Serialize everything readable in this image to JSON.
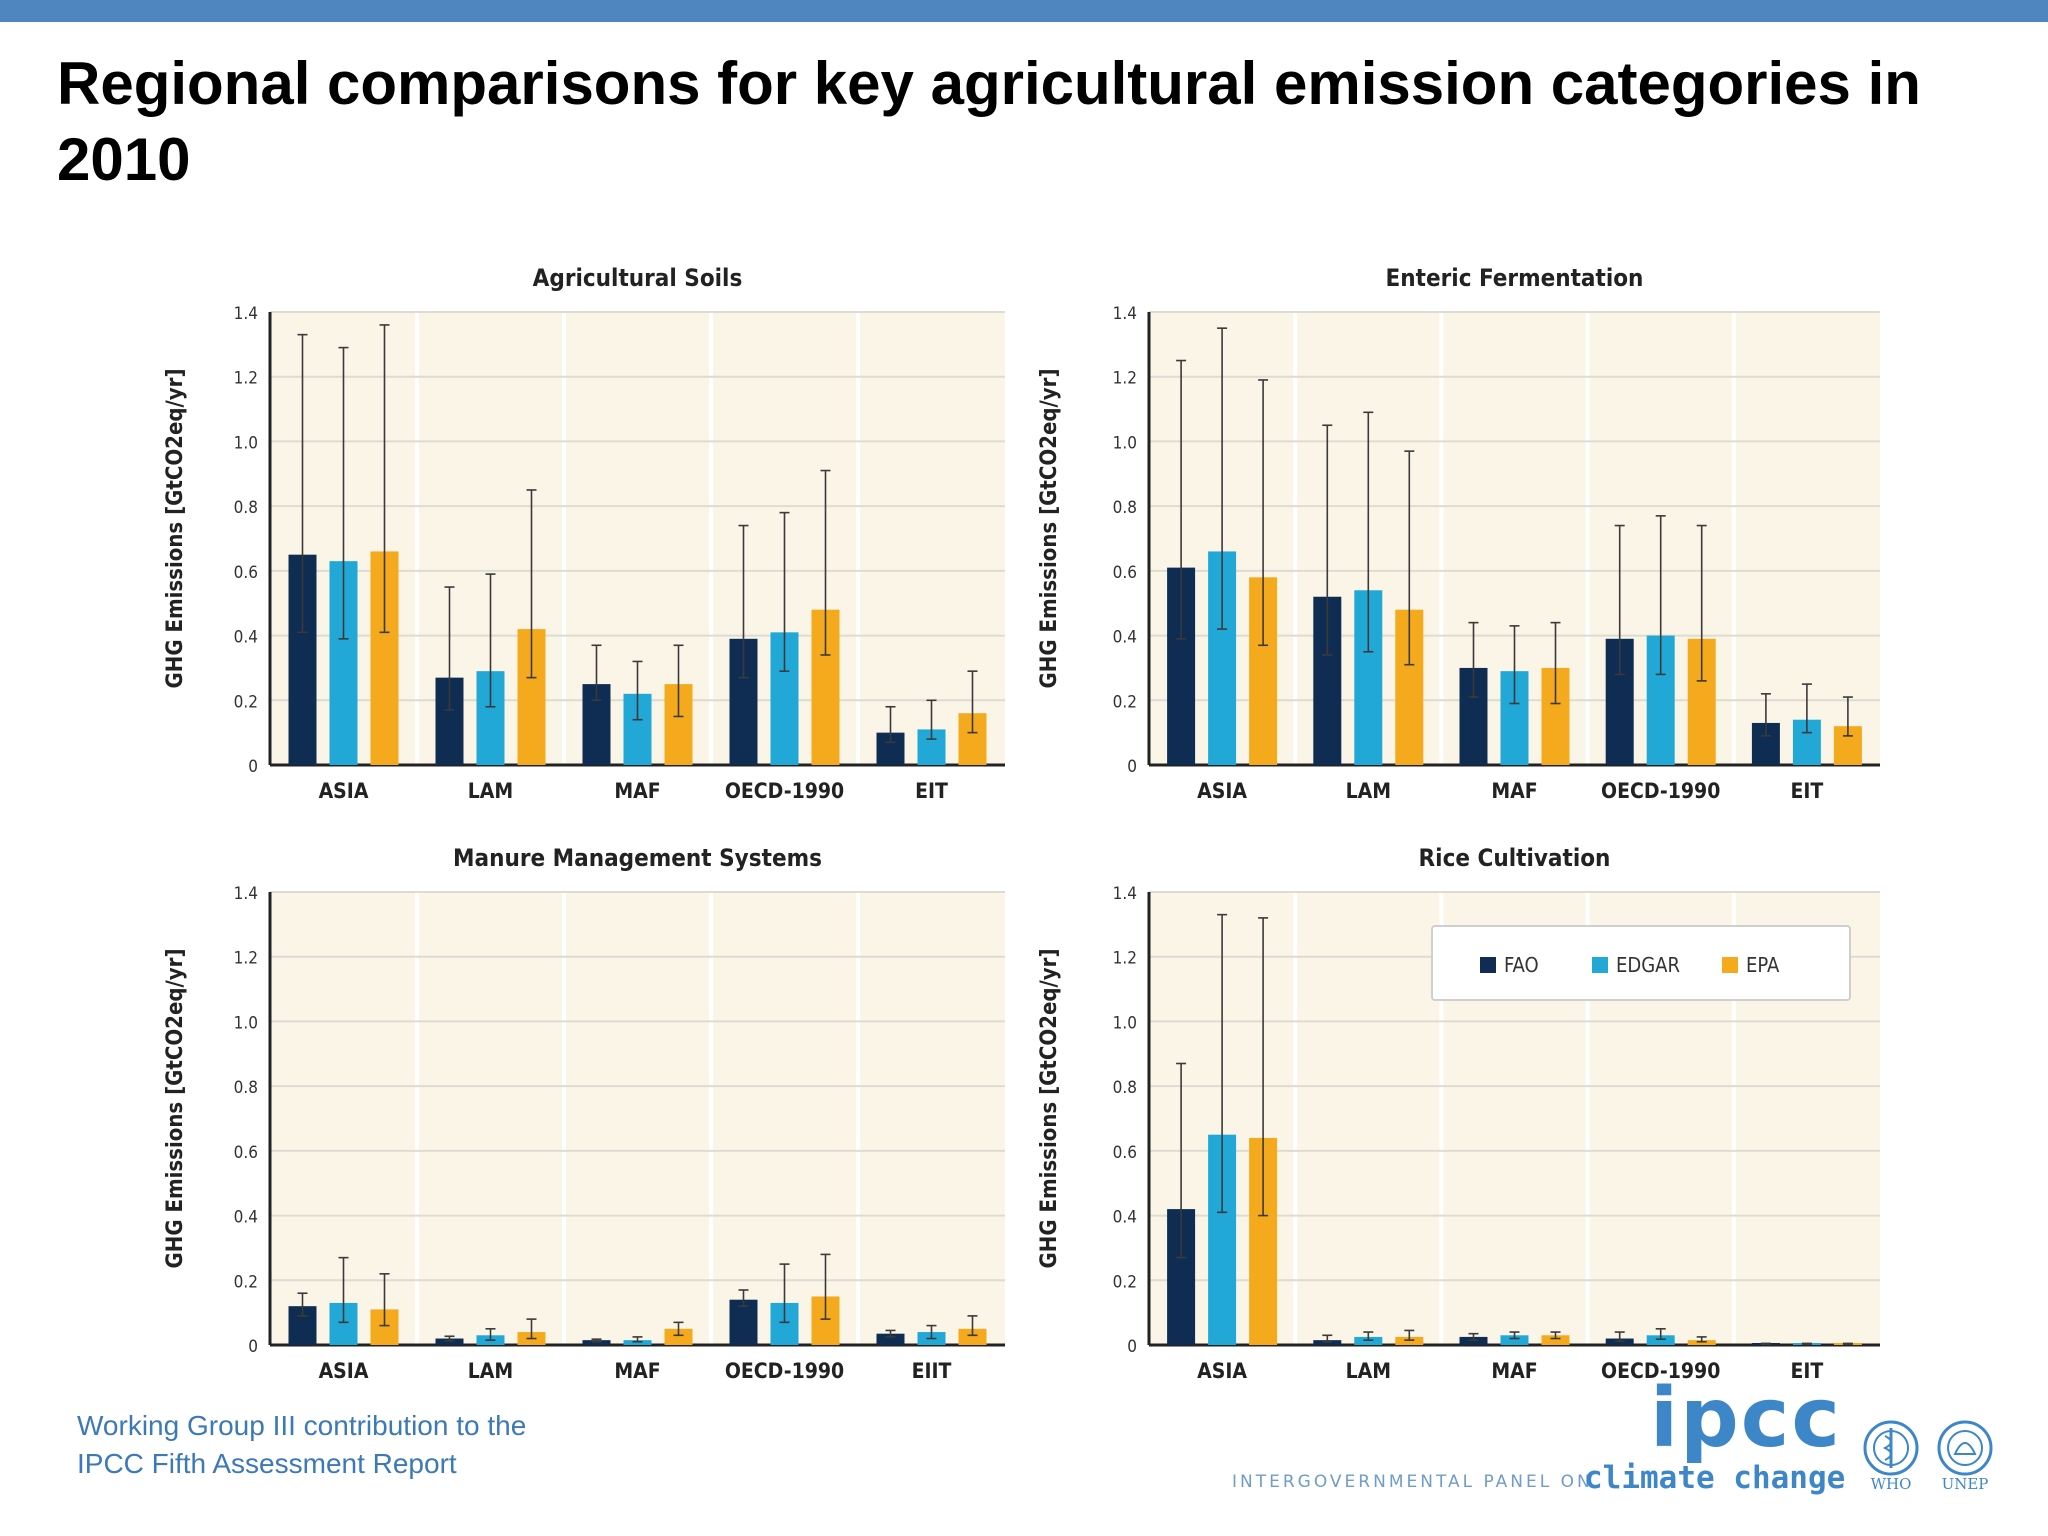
{
  "slide": {
    "title": "Regional comparisons for key agricultural emission categories in 2010",
    "footer_line1": "Working Group III contribution to the",
    "footer_line2": "IPCC Fifth Assessment Report",
    "logo_text": "ipcc",
    "logo_sub_caps": "INTERGOVERNMENTAL PANEL ON",
    "logo_sub_word": "climate change",
    "agency_1": "WHO",
    "agency_2": "UNEP"
  },
  "colors": {
    "FAO": "#0f2d52",
    "EDGAR": "#22a8d6",
    "EPA": "#f4aa1c",
    "plot_bg": "#fbf5e8",
    "header_bar": "#4f86c0"
  },
  "legend": {
    "placement": "top-right (Rice Cultivation panel)",
    "items": [
      "FAO",
      "EDGAR",
      "EPA"
    ]
  },
  "chart_data": [
    {
      "type": "bar",
      "title": "Agricultural Soils",
      "ylabel": "GHG Emissions [GtCO2eq/yr]",
      "ylim": [
        0,
        1.4
      ],
      "yticks": [
        "0",
        "0.2",
        "0.4",
        "0.6",
        "0.8",
        "1.0",
        "1.2",
        "1.4"
      ],
      "categories": [
        "ASIA",
        "LAM",
        "MAF",
        "OECD-1990",
        "EIT"
      ],
      "series": [
        {
          "name": "FAO",
          "values": [
            0.65,
            0.27,
            0.25,
            0.39,
            0.1
          ],
          "err_low": [
            0.41,
            0.17,
            0.2,
            0.27,
            0.07
          ],
          "err_high": [
            1.33,
            0.55,
            0.37,
            0.74,
            0.18
          ]
        },
        {
          "name": "EDGAR",
          "values": [
            0.63,
            0.29,
            0.22,
            0.41,
            0.11
          ],
          "err_low": [
            0.39,
            0.18,
            0.14,
            0.29,
            0.08
          ],
          "err_high": [
            1.29,
            0.59,
            0.32,
            0.78,
            0.2
          ]
        },
        {
          "name": "EPA",
          "values": [
            0.66,
            0.42,
            0.25,
            0.48,
            0.16
          ],
          "err_low": [
            0.41,
            0.27,
            0.15,
            0.34,
            0.1
          ],
          "err_high": [
            1.36,
            0.85,
            0.37,
            0.91,
            0.29
          ]
        }
      ],
      "grid": true
    },
    {
      "type": "bar",
      "title": "Enteric Fermentation",
      "ylabel": "GHG Emissions [GtCO2eq/yr]",
      "ylim": [
        0,
        1.4
      ],
      "yticks": [
        "0",
        "0.2",
        "0.4",
        "0.6",
        "0.8",
        "1.0",
        "1.2",
        "1.4"
      ],
      "categories": [
        "ASIA",
        "LAM",
        "MAF",
        "OECD-1990",
        "EIT"
      ],
      "series": [
        {
          "name": "FAO",
          "values": [
            0.61,
            0.52,
            0.3,
            0.39,
            0.13
          ],
          "err_low": [
            0.39,
            0.34,
            0.21,
            0.28,
            0.09
          ],
          "err_high": [
            1.25,
            1.05,
            0.44,
            0.74,
            0.22
          ]
        },
        {
          "name": "EDGAR",
          "values": [
            0.66,
            0.54,
            0.29,
            0.4,
            0.14
          ],
          "err_low": [
            0.42,
            0.35,
            0.19,
            0.28,
            0.1
          ],
          "err_high": [
            1.35,
            1.09,
            0.43,
            0.77,
            0.25
          ]
        },
        {
          "name": "EPA",
          "values": [
            0.58,
            0.48,
            0.3,
            0.39,
            0.12
          ],
          "err_low": [
            0.37,
            0.31,
            0.19,
            0.26,
            0.09
          ],
          "err_high": [
            1.19,
            0.97,
            0.44,
            0.74,
            0.21
          ]
        }
      ],
      "grid": true
    },
    {
      "type": "bar",
      "title": "Manure Management Systems",
      "ylabel": "GHG Emissions [GtCO2eq/yr]",
      "ylim": [
        0,
        1.4
      ],
      "yticks": [
        "0",
        "0.2",
        "0.4",
        "0.6",
        "0.8",
        "1.0",
        "1.2",
        "1.4"
      ],
      "categories": [
        "ASIA",
        "LAM",
        "MAF",
        "OECD-1990",
        "EIIT"
      ],
      "series": [
        {
          "name": "FAO",
          "values": [
            0.12,
            0.02,
            0.015,
            0.14,
            0.035
          ],
          "err_low": [
            0.09,
            0.013,
            0.01,
            0.12,
            0.025
          ],
          "err_high": [
            0.16,
            0.027,
            0.018,
            0.17,
            0.045
          ]
        },
        {
          "name": "EDGAR",
          "values": [
            0.13,
            0.03,
            0.015,
            0.13,
            0.04
          ],
          "err_low": [
            0.07,
            0.015,
            0.01,
            0.07,
            0.02
          ],
          "err_high": [
            0.27,
            0.05,
            0.025,
            0.25,
            0.06
          ]
        },
        {
          "name": "EPA",
          "values": [
            0.11,
            0.04,
            0.05,
            0.15,
            0.05
          ],
          "err_low": [
            0.06,
            0.02,
            0.03,
            0.08,
            0.03
          ],
          "err_high": [
            0.22,
            0.08,
            0.07,
            0.28,
            0.09
          ]
        }
      ],
      "grid": true
    },
    {
      "type": "bar",
      "title": "Rice Cultivation",
      "ylabel": "GHG Emissions [GtCO2eq/yr]",
      "ylim": [
        0,
        1.4
      ],
      "yticks": [
        "0",
        "0.2",
        "0.4",
        "0.6",
        "0.8",
        "1.0",
        "1.2",
        "1.4"
      ],
      "categories": [
        "ASIA",
        "LAM",
        "MAF",
        "OECD-1990",
        "EIT"
      ],
      "series": [
        {
          "name": "FAO",
          "values": [
            0.42,
            0.015,
            0.025,
            0.02,
            0.003
          ],
          "err_low": [
            0.27,
            0.01,
            0.015,
            0.012,
            0.002
          ],
          "err_high": [
            0.87,
            0.03,
            0.035,
            0.04,
            0.005
          ]
        },
        {
          "name": "EDGAR",
          "values": [
            0.65,
            0.025,
            0.03,
            0.03,
            0.003
          ],
          "err_low": [
            0.41,
            0.015,
            0.02,
            0.018,
            0.002
          ],
          "err_high": [
            1.33,
            0.04,
            0.04,
            0.05,
            0.005
          ]
        },
        {
          "name": "EPA",
          "values": [
            0.64,
            0.025,
            0.03,
            0.015,
            0.003
          ],
          "err_low": [
            0.4,
            0.015,
            0.02,
            0.01,
            0.002
          ],
          "err_high": [
            1.32,
            0.045,
            0.04,
            0.025,
            0.005
          ]
        }
      ],
      "grid": true,
      "legend": true
    }
  ]
}
